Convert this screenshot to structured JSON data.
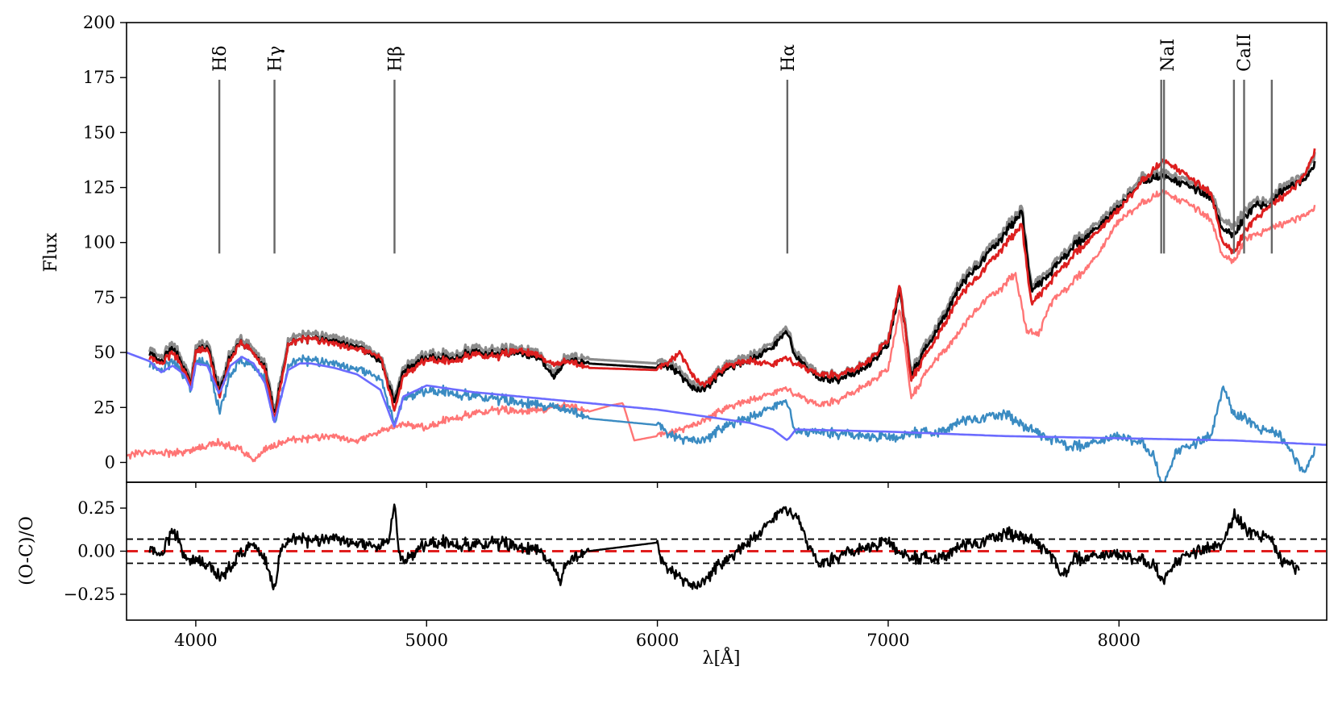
{
  "chart_data": [
    {
      "type": "line",
      "panel": "spectrum",
      "title": "",
      "xlabel": "",
      "ylabel": "Flux",
      "xlim": [
        3700,
        8900
      ],
      "ylim": [
        -9,
        200
      ],
      "x_ticks": [
        4000,
        5000,
        6000,
        7000,
        8000
      ],
      "y_ticks": [
        0,
        25,
        50,
        75,
        100,
        125,
        150,
        175,
        200
      ],
      "y_tick_labels": [
        "0",
        "25",
        "50",
        "75",
        "100",
        "125",
        "150",
        "175",
        "200"
      ],
      "grid": false,
      "legend": "none",
      "line_markers": [
        {
          "label": "Hδ",
          "x": [
            4102
          ],
          "color": "#666666",
          "y_range": [
            95,
            174
          ],
          "label_at": "top"
        },
        {
          "label": "Hγ",
          "x": [
            4341
          ],
          "color": "#666666",
          "y_range": [
            95,
            174
          ],
          "label_at": "top"
        },
        {
          "label": "Hβ",
          "x": [
            4861
          ],
          "color": "#666666",
          "y_range": [
            95,
            174
          ],
          "label_at": "top"
        },
        {
          "label": "Hα",
          "x": [
            6563
          ],
          "color": "#666666",
          "y_range": [
            95,
            174
          ],
          "label_at": "top"
        },
        {
          "label": "NaI",
          "x": [
            8183,
            8195
          ],
          "color": "#666666",
          "y_range": [
            95,
            174
          ],
          "label_at": "right"
        },
        {
          "label": "CaII",
          "x": [
            8498,
            8542,
            8662
          ],
          "color": "#666666",
          "y_range": [
            95,
            174
          ],
          "label_at": "middle"
        }
      ],
      "series": [
        {
          "role": "observed-envelope",
          "color": "#8c8c8c",
          "width": 3.2,
          "x": [
            3800,
            3850,
            3900,
            3950,
            3980,
            4000,
            4050,
            4102,
            4150,
            4200,
            4250,
            4300,
            4341,
            4400,
            4450,
            4500,
            4600,
            4700,
            4800,
            4861,
            4900,
            5000,
            5100,
            5200,
            5300,
            5400,
            5500,
            5550,
            5600,
            5700,
            6000,
            6050,
            6100,
            6150,
            6200,
            6300,
            6400,
            6500,
            6563,
            6600,
            6700,
            6800,
            6900,
            7000,
            7050,
            7100,
            7200,
            7300,
            7400,
            7500,
            7580,
            7620,
            7700,
            7800,
            7900,
            8000,
            8100,
            8190,
            8250,
            8300,
            8400,
            8450,
            8500,
            8550,
            8600,
            8650,
            8700,
            8750,
            8800,
            8850
          ],
          "y": [
            52,
            48,
            54,
            45,
            38,
            52,
            55,
            34,
            50,
            57,
            52,
            45,
            24,
            55,
            58,
            58,
            57,
            55,
            48,
            30,
            44,
            50,
            49,
            52,
            51,
            52,
            49,
            40,
            48,
            47,
            45,
            46,
            42,
            36,
            35,
            45,
            48,
            55,
            62,
            50,
            40,
            40,
            45,
            55,
            82,
            42,
            60,
            80,
            93,
            105,
            116,
            80,
            88,
            100,
            108,
            118,
            130,
            132,
            130,
            128,
            122,
            110,
            108,
            115,
            120,
            118,
            125,
            128,
            130,
            140
          ]
        },
        {
          "role": "observed",
          "color": "#000000",
          "width": 2.8,
          "x": [
            3800,
            3850,
            3900,
            3950,
            3980,
            4000,
            4050,
            4102,
            4150,
            4200,
            4250,
            4300,
            4341,
            4400,
            4450,
            4500,
            4600,
            4700,
            4800,
            4861,
            4900,
            5000,
            5100,
            5200,
            5300,
            5400,
            5500,
            5550,
            5600,
            5700,
            6000,
            6050,
            6100,
            6150,
            6200,
            6300,
            6400,
            6500,
            6563,
            6600,
            6700,
            6800,
            6900,
            7000,
            7050,
            7100,
            7200,
            7300,
            7400,
            7500,
            7580,
            7620,
            7700,
            7800,
            7900,
            8000,
            8100,
            8190,
            8250,
            8300,
            8400,
            8450,
            8500,
            8550,
            8600,
            8650,
            8700,
            8750,
            8800,
            8850
          ],
          "y": [
            50,
            46,
            52,
            43,
            36,
            50,
            53,
            32,
            48,
            55,
            50,
            43,
            22,
            53,
            56,
            56,
            55,
            53,
            46,
            28,
            42,
            48,
            47,
            50,
            49,
            50,
            47,
            38,
            46,
            45,
            43,
            44,
            40,
            34,
            33,
            43,
            46,
            53,
            60,
            48,
            38,
            38,
            43,
            53,
            80,
            40,
            58,
            78,
            91,
            103,
            114,
            78,
            86,
            98,
            106,
            116,
            128,
            130,
            128,
            126,
            120,
            106,
            104,
            112,
            118,
            116,
            123,
            126,
            128,
            136
          ]
        },
        {
          "role": "cool-component",
          "color": "#ff7575",
          "width": 2.4,
          "x": [
            3700,
            3800,
            3900,
            4000,
            4100,
            4150,
            4200,
            4250,
            4300,
            4400,
            4500,
            4600,
            4700,
            4800,
            4900,
            5000,
            5100,
            5200,
            5300,
            5400,
            5500,
            5600,
            5700,
            5800,
            5850,
            5900,
            6000,
            6100,
            6200,
            6300,
            6400,
            6500,
            6563,
            6600,
            6700,
            6800,
            6900,
            7000,
            7050,
            7100,
            7200,
            7300,
            7400,
            7500,
            7550,
            7600,
            7650,
            7700,
            7800,
            7900,
            8000,
            8100,
            8190,
            8250,
            8300,
            8400,
            8450,
            8500,
            8550,
            8600,
            8700,
            8800,
            8850
          ],
          "y": [
            3,
            5,
            4,
            6,
            9,
            7,
            6,
            1,
            6,
            10,
            11,
            12,
            10,
            14,
            18,
            16,
            20,
            22,
            24,
            23,
            24,
            26,
            23,
            26,
            27,
            10,
            12,
            15,
            19,
            25,
            28,
            32,
            34,
            31,
            26,
            29,
            35,
            42,
            71,
            30,
            46,
            58,
            72,
            80,
            86,
            60,
            58,
            72,
            82,
            93,
            110,
            118,
            123,
            120,
            118,
            110,
            94,
            92,
            102,
            104,
            108,
            112,
            116
          ]
        },
        {
          "role": "hot-component",
          "color": "#3a8bc2",
          "width": 2.4,
          "x": [
            3800,
            3850,
            3900,
            3950,
            3980,
            4000,
            4050,
            4102,
            4150,
            4200,
            4250,
            4300,
            4341,
            4400,
            4450,
            4500,
            4600,
            4700,
            4800,
            4861,
            4900,
            5000,
            5100,
            5200,
            5300,
            5400,
            5500,
            5600,
            5700,
            6000,
            6050,
            6100,
            6200,
            6300,
            6400,
            6500,
            6563,
            6600,
            6700,
            6800,
            6900,
            7000,
            7100,
            7200,
            7300,
            7400,
            7500,
            7600,
            7700,
            7800,
            7900,
            8000,
            8100,
            8150,
            8190,
            8250,
            8300,
            8400,
            8450,
            8500,
            8550,
            8600,
            8700,
            8750,
            8800,
            8850
          ],
          "y": [
            45,
            42,
            46,
            40,
            33,
            45,
            46,
            23,
            40,
            47,
            44,
            38,
            18,
            43,
            47,
            46,
            45,
            43,
            38,
            18,
            30,
            33,
            32,
            30,
            29,
            27,
            26,
            24,
            20,
            17,
            13,
            11,
            10,
            17,
            20,
            26,
            28,
            14,
            14,
            13,
            12,
            11,
            14,
            13,
            18,
            20,
            22,
            16,
            11,
            7,
            9,
            12,
            9,
            3,
            -12,
            6,
            7,
            12,
            35,
            22,
            20,
            16,
            12,
            4,
            -5,
            6
          ]
        },
        {
          "role": "fit",
          "color": "#dd1f1f",
          "width": 2.8,
          "x": [
            3800,
            3850,
            3900,
            3950,
            3980,
            4000,
            4050,
            4102,
            4150,
            4200,
            4250,
            4300,
            4341,
            4400,
            4450,
            4500,
            4600,
            4700,
            4800,
            4861,
            4900,
            5000,
            5100,
            5200,
            5300,
            5400,
            5500,
            5550,
            5600,
            5700,
            6000,
            6050,
            6100,
            6150,
            6200,
            6300,
            6400,
            6500,
            6563,
            6600,
            6700,
            6800,
            6900,
            7000,
            7050,
            7100,
            7200,
            7300,
            7400,
            7500,
            7580,
            7620,
            7700,
            7800,
            7900,
            8000,
            8100,
            8190,
            8250,
            8300,
            8400,
            8450,
            8500,
            8550,
            8600,
            8650,
            8700,
            8750,
            8800,
            8850
          ],
          "y": [
            48,
            45,
            50,
            42,
            35,
            50,
            52,
            30,
            47,
            55,
            50,
            42,
            20,
            53,
            56,
            56,
            54,
            52,
            48,
            24,
            40,
            47,
            46,
            49,
            48,
            51,
            48,
            44,
            46,
            43,
            42,
            46,
            50,
            40,
            35,
            44,
            46,
            45,
            48,
            45,
            40,
            40,
            45,
            55,
            82,
            38,
            55,
            74,
            86,
            98,
            108,
            72,
            82,
            94,
            104,
            115,
            128,
            137,
            134,
            130,
            122,
            100,
            96,
            106,
            112,
            116,
            120,
            124,
            130,
            142
          ]
        },
        {
          "role": "model-continuum",
          "color": "#6b6bff",
          "width": 2.6,
          "x": [
            3700,
            3800,
            3850,
            3900,
            3950,
            3980,
            4000,
            4050,
            4102,
            4150,
            4200,
            4250,
            4300,
            4341,
            4400,
            4450,
            4500,
            4600,
            4700,
            4800,
            4861,
            4900,
            5000,
            5200,
            5400,
            5600,
            5800,
            6000,
            6200,
            6400,
            6500,
            6563,
            6600,
            7000,
            7500,
            8000,
            8500,
            8900
          ],
          "y": [
            50,
            46,
            41,
            44,
            40,
            33,
            45,
            44,
            31,
            44,
            48,
            45,
            36,
            18,
            42,
            45,
            45,
            43,
            40,
            33,
            16,
            30,
            35,
            32,
            30,
            28,
            26,
            24,
            21,
            18,
            15,
            10,
            15,
            14,
            12,
            11,
            10,
            8
          ]
        }
      ]
    },
    {
      "type": "line",
      "panel": "residuals",
      "title": "",
      "xlabel": "λ[Å]",
      "ylabel": "(O-C)/O",
      "xlim": [
        3700,
        8900
      ],
      "ylim": [
        -0.4,
        0.4
      ],
      "x_ticks": [
        4000,
        5000,
        6000,
        7000,
        8000
      ],
      "x_tick_labels": [
        "4000",
        "5000",
        "6000",
        "7000",
        "8000"
      ],
      "y_ticks": [
        -0.25,
        0.0,
        0.25
      ],
      "y_tick_labels": [
        "−0.25",
        "0.00",
        "0.25"
      ],
      "grid": false,
      "legend": "none",
      "reference_lines": [
        {
          "y": 0.0,
          "color": "#e01e1e",
          "style": "dashed"
        },
        {
          "y": 0.07,
          "color": "#000000",
          "style": "dashed"
        },
        {
          "y": -0.07,
          "color": "#000000",
          "style": "dashed"
        }
      ],
      "series": [
        {
          "role": "residual",
          "color": "#000000",
          "width": 2.4,
          "x": [
            3800,
            3850,
            3900,
            3930,
            3960,
            3990,
            4050,
            4100,
            4150,
            4200,
            4250,
            4300,
            4340,
            4370,
            4400,
            4450,
            4500,
            4600,
            4700,
            4800,
            4840,
            4861,
            4880,
            4900,
            5000,
            5100,
            5200,
            5300,
            5400,
            5500,
            5550,
            5580,
            5600,
            5700,
            6000,
            6010,
            6050,
            6100,
            6150,
            6200,
            6250,
            6300,
            6400,
            6450,
            6500,
            6550,
            6600,
            6650,
            6700,
            6800,
            6900,
            7000,
            7100,
            7200,
            7300,
            7400,
            7500,
            7600,
            7700,
            7750,
            7800,
            7900,
            8000,
            8100,
            8150,
            8190,
            8250,
            8300,
            8400,
            8450,
            8500,
            8550,
            8600,
            8650,
            8700,
            8750,
            8780
          ],
          "y": [
            0.02,
            -0.02,
            0.12,
            0.05,
            -0.05,
            -0.05,
            -0.08,
            -0.15,
            -0.1,
            0.0,
            0.05,
            -0.05,
            -0.22,
            0.02,
            0.05,
            0.08,
            0.05,
            0.08,
            0.05,
            0.02,
            0.08,
            0.3,
            0.0,
            -0.05,
            0.05,
            0.05,
            0.03,
            0.05,
            0.02,
            0.0,
            -0.1,
            -0.18,
            -0.08,
            0.0,
            0.05,
            -0.05,
            -0.1,
            -0.15,
            -0.2,
            -0.18,
            -0.1,
            -0.05,
            0.05,
            0.12,
            0.2,
            0.25,
            0.22,
            0.05,
            -0.08,
            -0.02,
            0.02,
            0.05,
            -0.03,
            -0.05,
            0.02,
            0.05,
            0.1,
            0.08,
            0.0,
            -0.15,
            -0.05,
            -0.03,
            -0.02,
            -0.05,
            -0.08,
            -0.18,
            -0.05,
            -0.02,
            0.02,
            0.05,
            0.22,
            0.12,
            0.1,
            0.08,
            -0.05,
            -0.08,
            -0.12
          ]
        }
      ]
    }
  ]
}
